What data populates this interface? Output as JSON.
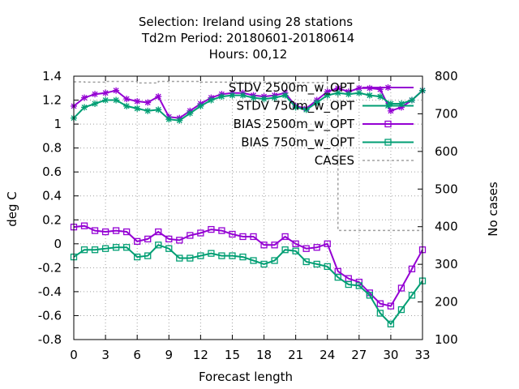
{
  "chart_data": {
    "type": "line",
    "title_lines": [
      "Selection: Ireland using    28 stations",
      "Td2m   Period: 20180601-20180614",
      "Hours:  00,12"
    ],
    "xlabel": "Forecast length",
    "ylabel": "deg C",
    "y2label": "No cases",
    "x_ticks": [
      0,
      3,
      6,
      9,
      12,
      15,
      18,
      21,
      24,
      27,
      30,
      33
    ],
    "y_ticks": [
      -0.8,
      -0.6,
      -0.4,
      -0.2,
      0,
      0.2,
      0.4,
      0.6,
      0.8,
      1,
      1.2,
      1.4
    ],
    "y_tick_labels": [
      "-0.8",
      "-0.6",
      "-0.4",
      "-0.2",
      "0",
      "0.2",
      "0.4",
      "0.6",
      "0.8",
      "1",
      "1.2",
      "1.4"
    ],
    "y2_ticks": [
      100,
      200,
      300,
      400,
      500,
      600,
      700,
      800
    ],
    "xlim": [
      0,
      33
    ],
    "ylim": [
      -0.8,
      1.4
    ],
    "y2lim": [
      100,
      800
    ],
    "grid": true,
    "legend_position": "top-right",
    "x": [
      0,
      1,
      2,
      3,
      4,
      5,
      6,
      7,
      8,
      9,
      10,
      11,
      12,
      13,
      14,
      15,
      16,
      17,
      18,
      19,
      20,
      21,
      22,
      23,
      24,
      25,
      26,
      27,
      28,
      29,
      30,
      31,
      32,
      33
    ],
    "series": [
      {
        "name": "STDV 2500m_w_OPT",
        "color": "#9400d3",
        "marker": "star",
        "axis": "y1",
        "values": [
          1.15,
          1.22,
          1.25,
          1.26,
          1.28,
          1.21,
          1.19,
          1.18,
          1.23,
          1.06,
          1.05,
          1.11,
          1.17,
          1.22,
          1.25,
          1.26,
          1.26,
          1.24,
          1.23,
          1.24,
          1.26,
          1.15,
          1.13,
          1.2,
          1.27,
          1.3,
          1.27,
          1.3,
          1.3,
          1.29,
          1.11,
          1.14,
          1.2,
          1.28
        ]
      },
      {
        "name": "STDV 750m_w_OPT",
        "color": "#009e73",
        "marker": "star",
        "axis": "y1",
        "values": [
          1.05,
          1.14,
          1.17,
          1.2,
          1.2,
          1.15,
          1.13,
          1.11,
          1.12,
          1.04,
          1.03,
          1.09,
          1.15,
          1.2,
          1.23,
          1.24,
          1.24,
          1.22,
          1.21,
          1.22,
          1.24,
          1.14,
          1.12,
          1.18,
          1.24,
          1.26,
          1.25,
          1.26,
          1.24,
          1.23,
          1.17,
          1.17,
          1.2,
          1.28
        ]
      },
      {
        "name": "BIAS 2500m_w_OPT",
        "color": "#9400d3",
        "marker": "square",
        "axis": "y1",
        "values": [
          0.14,
          0.15,
          0.11,
          0.1,
          0.11,
          0.1,
          0.02,
          0.04,
          0.1,
          0.04,
          0.03,
          0.07,
          0.09,
          0.12,
          0.11,
          0.08,
          0.06,
          0.06,
          -0.01,
          -0.01,
          0.06,
          0.0,
          -0.04,
          -0.03,
          0.0,
          -0.23,
          -0.29,
          -0.32,
          -0.41,
          -0.5,
          -0.52,
          -0.37,
          -0.21,
          -0.05
        ]
      },
      {
        "name": "BIAS 750m_w_OPT",
        "color": "#009e73",
        "marker": "square",
        "axis": "y1",
        "values": [
          -0.11,
          -0.05,
          -0.05,
          -0.04,
          -0.03,
          -0.03,
          -0.11,
          -0.1,
          -0.01,
          -0.04,
          -0.12,
          -0.12,
          -0.1,
          -0.08,
          -0.1,
          -0.1,
          -0.11,
          -0.14,
          -0.17,
          -0.14,
          -0.05,
          -0.06,
          -0.15,
          -0.17,
          -0.19,
          -0.28,
          -0.34,
          -0.35,
          -0.43,
          -0.58,
          -0.67,
          -0.55,
          -0.43,
          -0.31
        ]
      },
      {
        "name": "CASES",
        "color": "#a0a0a0",
        "marker": "none",
        "dashed": true,
        "axis": "y2",
        "values": [
          785,
          784,
          784,
          786,
          786,
          786,
          782,
          782,
          786,
          786,
          786,
          786,
          784,
          784,
          784,
          784,
          784,
          784,
          784,
          784,
          783,
          783,
          783,
          783,
          760,
          390,
          390,
          390,
          390,
          390,
          390,
          390,
          390,
          390
        ]
      }
    ]
  }
}
